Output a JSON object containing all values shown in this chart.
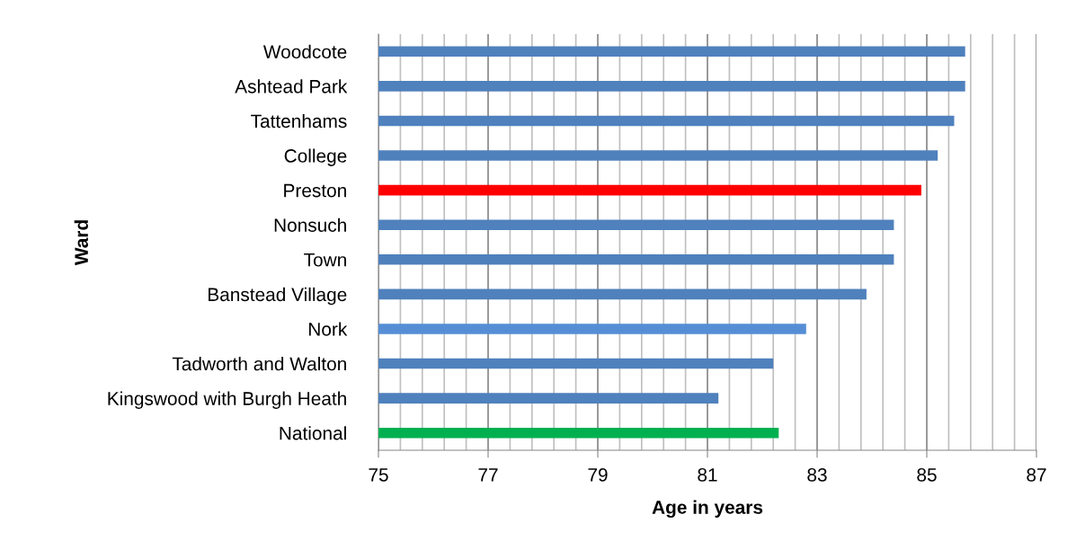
{
  "chart_data": {
    "type": "bar",
    "orientation": "horizontal",
    "ylabel": "Ward",
    "xlabel": "Age in years",
    "categories": [
      "Woodcote",
      "Ashtead Park",
      "Tattenhams",
      "College",
      "Preston",
      "Nonsuch",
      "Town",
      "Banstead Village",
      "Nork",
      "Tadworth and Walton",
      "Kingswood with Burgh Heath",
      "National"
    ],
    "values": [
      85.7,
      85.7,
      85.5,
      85.2,
      84.9,
      84.4,
      84.4,
      83.9,
      82.8,
      82.2,
      81.2,
      82.3
    ],
    "colors": [
      "#4f81bd",
      "#4f81bd",
      "#4f81bd",
      "#4f81bd",
      "#ff0000",
      "#4f81bd",
      "#4f81bd",
      "#4f81bd",
      "#558ed5",
      "#4f81bd",
      "#4f81bd",
      "#00b050"
    ],
    "xlim": [
      75,
      87
    ],
    "xticks": [
      75,
      {
        "value": 75.4,
        "label": null
      },
      {
        "value": 75.8,
        "label": null
      },
      {
        "value": 76.2,
        "label": null
      },
      {
        "value": 76.6,
        "label": null
      },
      77,
      {
        "value": 77.4,
        "label": null
      },
      {
        "value": 77.8,
        "label": null
      },
      {
        "value": 78.2,
        "label": null
      },
      {
        "value": 78.6,
        "label": null
      },
      79,
      {
        "value": 79.4,
        "label": null
      },
      {
        "value": 79.8,
        "label": null
      },
      {
        "value": 80.2,
        "label": null
      },
      {
        "value": 80.6,
        "label": null
      },
      81,
      {
        "value": 81.4,
        "label": null
      },
      {
        "value": 81.8,
        "label": null
      },
      {
        "value": 82.2,
        "label": null
      },
      {
        "value": 82.6,
        "label": null
      },
      83,
      {
        "value": 83.4,
        "label": null
      },
      {
        "value": 83.8,
        "label": null
      },
      {
        "value": 84.2,
        "label": null
      },
      {
        "value": 84.6,
        "label": null
      },
      85,
      {
        "value": 85.4,
        "label": null
      },
      {
        "value": 85.8,
        "label": null
      },
      {
        "value": 86.2,
        "label": null
      },
      {
        "value": 86.6,
        "label": null
      },
      87
    ],
    "grid": "x"
  }
}
